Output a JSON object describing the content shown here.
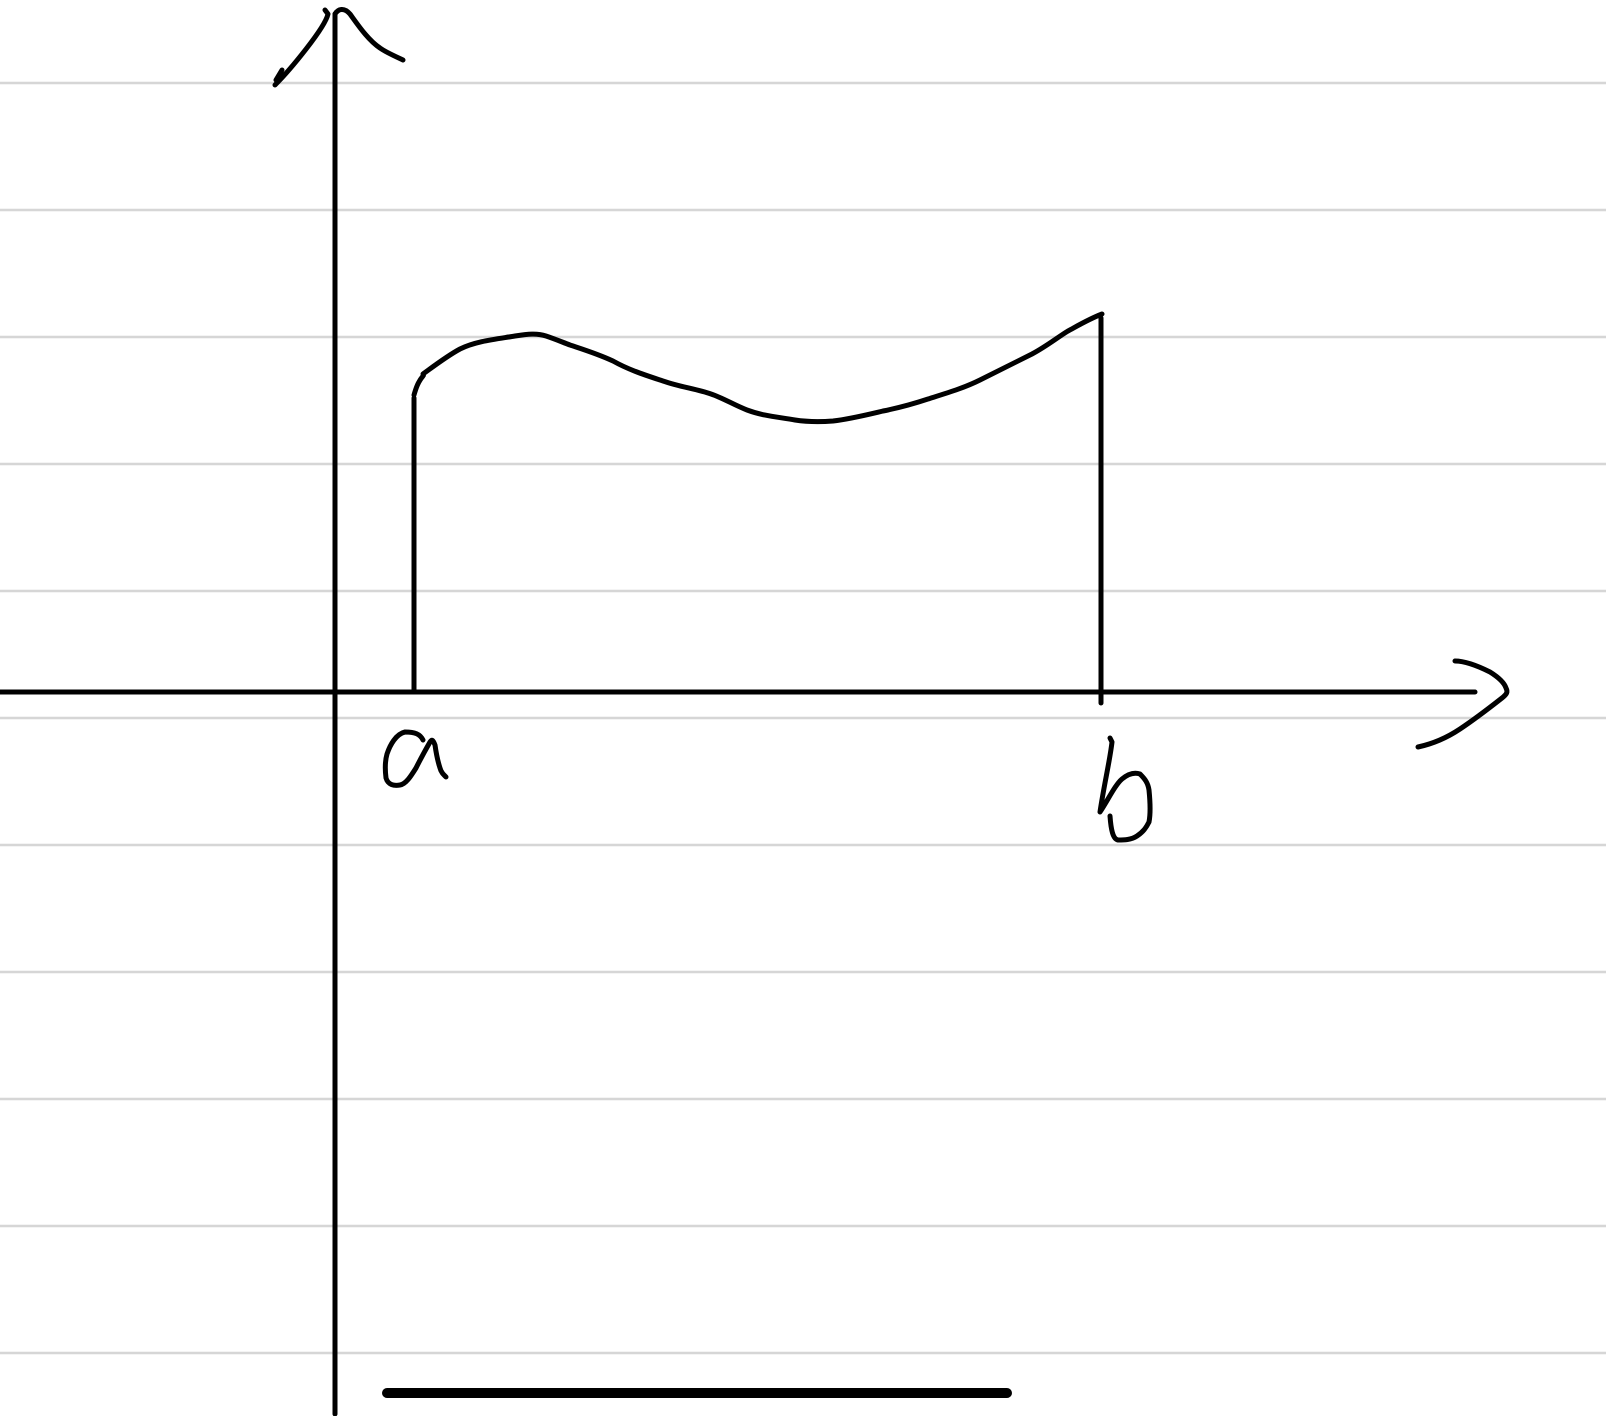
{
  "paper": {
    "background": "#ffffff",
    "ruled_line_color": "#d6d6d6",
    "ink_color": "#000000"
  },
  "diagram": {
    "x_axis": {
      "icon": "arrow-right-icon"
    },
    "y_axis": {
      "icon": "arrow-up-icon"
    },
    "curve": {
      "description_icon": "function-curve-icon"
    },
    "bounds": {
      "left": {
        "label": "a"
      },
      "right": {
        "label": "b"
      }
    }
  }
}
